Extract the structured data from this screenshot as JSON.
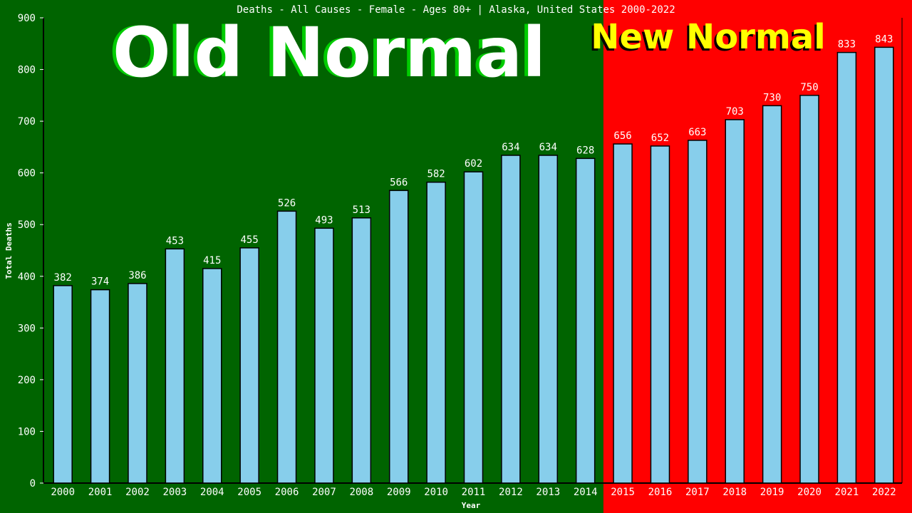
{
  "chart_data": {
    "type": "bar",
    "title": "Deaths - All Causes - Female - Ages 80+ | Alaska, United States 2000-2022",
    "xlabel": "Year",
    "ylabel": "Total Deaths",
    "ylim": [
      0,
      900
    ],
    "yticks": [
      "0",
      "100",
      "200",
      "300",
      "400",
      "500",
      "600",
      "700",
      "800",
      "900"
    ],
    "categories": [
      "2000",
      "2001",
      "2002",
      "2003",
      "2004",
      "2005",
      "2006",
      "2007",
      "2008",
      "2009",
      "2010",
      "2011",
      "2012",
      "2013",
      "2014",
      "2015",
      "2016",
      "2017",
      "2018",
      "2019",
      "2020",
      "2021",
      "2022"
    ],
    "values": [
      382,
      374,
      386,
      453,
      415,
      455,
      526,
      493,
      513,
      566,
      582,
      602,
      634,
      634,
      628,
      656,
      652,
      663,
      703,
      730,
      750,
      833,
      843
    ],
    "regions": [
      {
        "label": "Old Normal",
        "from": "2000",
        "to": "2014",
        "background": "#006400",
        "text_color": "#ffffff",
        "shadow_color": "#00cc00"
      },
      {
        "label": "New Normal",
        "from": "2015",
        "to": "2022",
        "background": "#ff0000",
        "text_color": "#ffff00",
        "shadow_color": "#000000"
      }
    ],
    "bar_color": "#87ceeb",
    "grid": false,
    "legend": "none"
  }
}
